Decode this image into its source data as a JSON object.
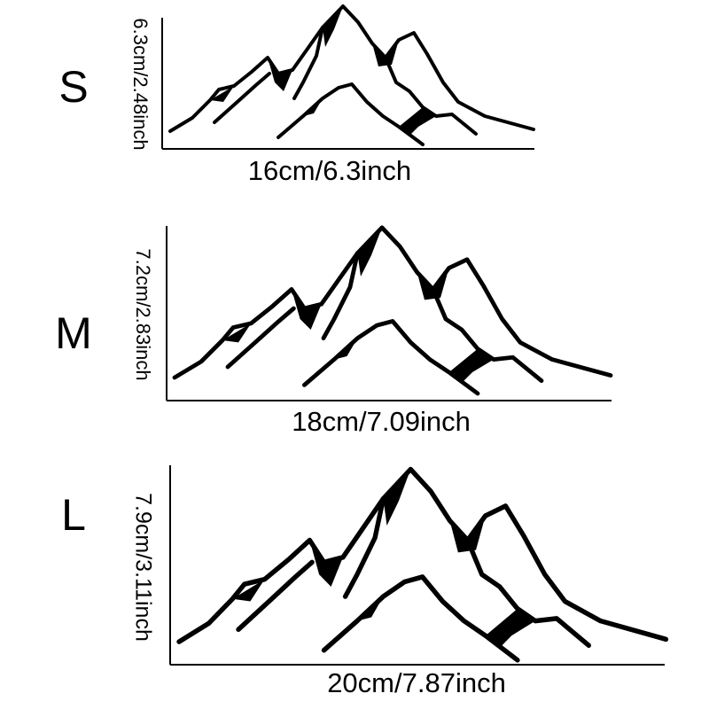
{
  "sizes": [
    {
      "label": "S",
      "height": "6.3cm/2.48inch",
      "width": "16cm/6.3inch"
    },
    {
      "label": "M",
      "height": "7.2cm/2.83inch",
      "width": "18cm/7.09inch"
    },
    {
      "label": "L",
      "height": "7.9cm/3.11inch",
      "width": "20cm/7.87inch"
    }
  ]
}
